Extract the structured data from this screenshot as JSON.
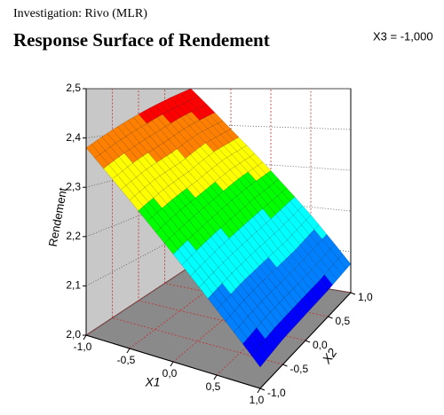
{
  "chart_data": {
    "type": "surface3d",
    "subtitle": "Investigation: Rivo (MLR)",
    "title": "Response Surface of Rendement",
    "annotation": "X3 = -1,000",
    "xlabel": "X1",
    "ylabel": "X2",
    "zlabel": "Rendement",
    "x": [
      -1,
      -0.5,
      0,
      0.5,
      1
    ],
    "y": [
      -1,
      -0.5,
      0,
      0.5,
      1
    ],
    "z": [
      [
        2.38,
        2.295,
        2.21,
        2.125,
        2.04
      ],
      [
        2.41,
        2.32,
        2.23,
        2.14,
        2.05
      ],
      [
        2.44,
        2.34,
        2.25,
        2.15,
        2.055
      ],
      [
        2.47,
        2.37,
        2.27,
        2.16,
        2.06
      ],
      [
        2.5,
        2.39,
        2.285,
        2.18,
        2.07
      ]
    ],
    "xlim": [
      -1,
      1
    ],
    "ylim": [
      -1,
      1
    ],
    "zlim": [
      2.0,
      2.5
    ],
    "xticks": [
      {
        "value": -1,
        "label": "-1,0"
      },
      {
        "value": -0.5,
        "label": "-0,5"
      },
      {
        "value": 0,
        "label": "0,0"
      },
      {
        "value": 0.5,
        "label": "0,5"
      },
      {
        "value": 1,
        "label": "1,0"
      }
    ],
    "yticks": [
      {
        "value": -1,
        "label": "-1,0"
      },
      {
        "value": -0.5,
        "label": "-0,5"
      },
      {
        "value": 0,
        "label": "0,0"
      },
      {
        "value": 0.5,
        "label": "0,5"
      },
      {
        "value": 1,
        "label": "1,0"
      }
    ],
    "zticks": [
      {
        "value": 2.0,
        "label": "2,0"
      },
      {
        "value": 2.1,
        "label": "2,1"
      },
      {
        "value": 2.2,
        "label": "2,2"
      },
      {
        "value": 2.3,
        "label": "2,3"
      },
      {
        "value": 2.4,
        "label": "2,4"
      },
      {
        "value": 2.5,
        "label": "2,5"
      }
    ],
    "colormap": [
      "#0000ff",
      "#0080ff",
      "#00ffff",
      "#00ff00",
      "#ffff00",
      "#ff8000",
      "#ff0000"
    ],
    "grid": true
  }
}
